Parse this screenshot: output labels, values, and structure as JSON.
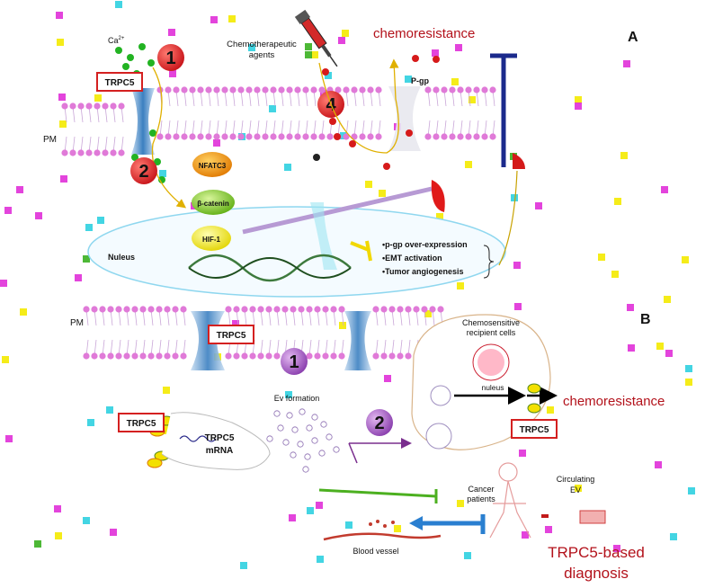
{
  "panel_a": {
    "letter": "A",
    "ca": "Ca",
    "ca_sup": "2+",
    "trpc5_label": "TRPC5",
    "chemo_agents_line1": "Chemotherapeutic",
    "chemo_agents_line2": "agents",
    "chemoresistance": "chemoresistance",
    "pgp": "P-gp",
    "pm": "PM",
    "step1": "1",
    "step2": "2",
    "step4": "4",
    "nfatc3": "NFATC3",
    "beta_catenin": "β-catenin",
    "hif1": "HIF-1",
    "nucleus": "Nuleus",
    "outcomes": [
      "•p-gp over-expression",
      "•EMT activation",
      "•Tumor angiogenesis"
    ]
  },
  "panel_b": {
    "letter": "B",
    "pm": "PM",
    "trpc5_membrane": "TRPC5",
    "step1": "1",
    "step2": "2",
    "ev_formation": "Ev formation",
    "trpc5_left": "TRPC5",
    "trpc5_mrna_line1": "TRPC5",
    "trpc5_mrna_line2": "mRNA",
    "recipient_line1": "Chemosensitive",
    "recipient_line2": "recipient cells",
    "nuleus": "nuleus",
    "chemoresistance": "chemoresistance",
    "trpc5_recipient": "TRPC5",
    "cancer_patients_line1": "Cancer",
    "cancer_patients_line2": "patients",
    "circulating_line1": "Circulating",
    "circulating_line2": "EV",
    "blood_vessel": "Blood vessel",
    "diagnosis_line1": "TRPC5-based",
    "diagnosis_line2": "diagnosis"
  },
  "colors": {
    "membrane_head": "#e07ad8",
    "channel": "#4a8fc8",
    "step_red": "#d42020",
    "step_purple": "#a35bbf",
    "title_red": "#b3121b",
    "blue_bar": "#1b2a8c"
  }
}
